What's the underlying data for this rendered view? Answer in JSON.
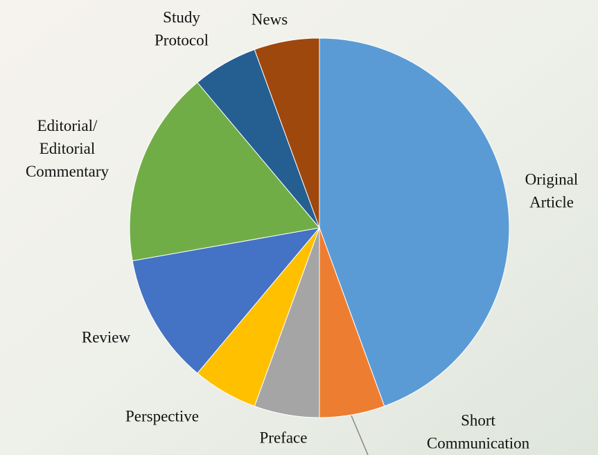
{
  "chart_data": {
    "type": "pie",
    "categories": [
      "Original Article",
      "Short Communication",
      "Preface",
      "Perspective",
      "Review",
      "Editorial/ Editorial Commentary",
      "Study Protocol",
      "News"
    ],
    "values": [
      8,
      1,
      1,
      1,
      2,
      3,
      1,
      1
    ],
    "colors": [
      "#5b9bd5",
      "#ed7d31",
      "#a5a5a5",
      "#ffc000",
      "#4472c4",
      "#70ad47",
      "#255e91",
      "#9e480e"
    ]
  }
}
